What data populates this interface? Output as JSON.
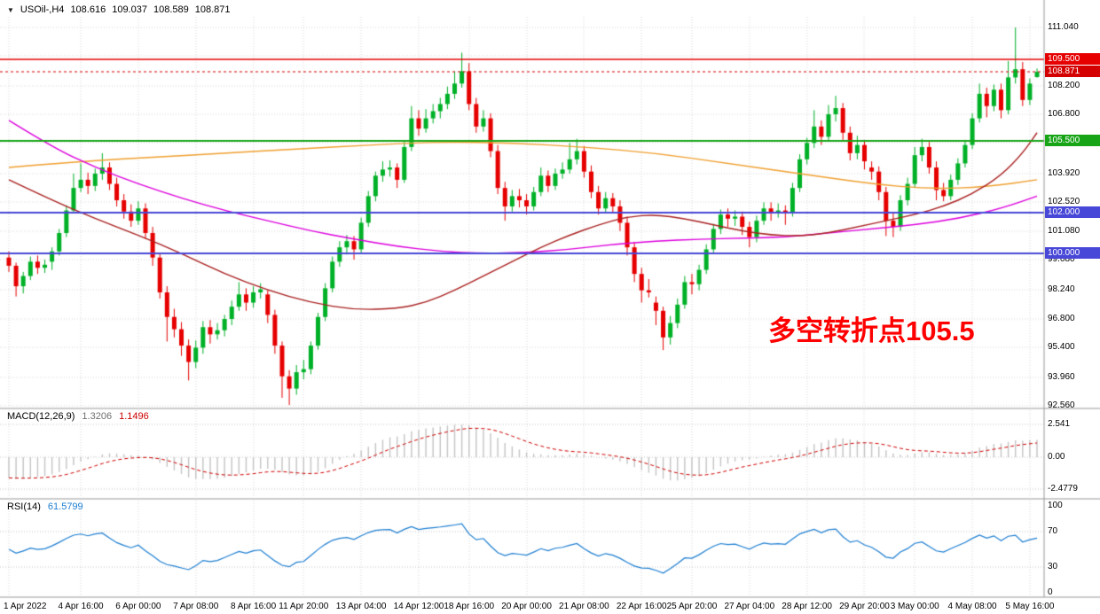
{
  "header": {
    "collapse_icon": "▼",
    "symbol_period": "USOil-,H4",
    "open": "108.616",
    "high": "109.037",
    "low": "108.589",
    "close": "108.871"
  },
  "annotation": {
    "text": "多空转折点105.5",
    "color": "#ff0000"
  },
  "indicators": {
    "macd": {
      "label": "MACD(12,26,9)",
      "value_main": "1.3206",
      "value_signal": "1.1496",
      "value_main_color": "#6f6f6f",
      "value_signal_color": "#cc0000",
      "scale": [
        "2.541",
        "0.00",
        "-2.4779"
      ]
    },
    "rsi": {
      "label": "RSI(14)",
      "value": "61.5799",
      "value_color": "#1e7fd2",
      "scale": [
        "100",
        "70",
        "30",
        "0"
      ]
    }
  },
  "chart_data": {
    "type": "candlestick",
    "title": "USOil- H4 chart with MACD(12,26,9) and RSI(14)",
    "symbol": "USOil-",
    "timeframe": "H4",
    "up_color": "#00b127",
    "down_color": "#e60000",
    "grid_on": true,
    "y_axis_range": [
      92.0,
      111.6
    ],
    "y_tick_labels": [
      "111.040",
      "108.200",
      "106.800",
      "103.920",
      "102.520",
      "101.080",
      "99.680",
      "98.240",
      "96.800",
      "95.400",
      "93.960",
      "92.560"
    ],
    "gridline_prices": [
      111.04,
      109.64,
      108.2,
      106.8,
      105.4,
      103.92,
      102.52,
      101.08,
      99.68,
      98.24,
      96.8,
      95.4,
      93.96,
      92.56
    ],
    "x_labels": [
      {
        "label": "1 Apr 2022",
        "i": 0
      },
      {
        "label": "4 Apr 16:00",
        "i": 10
      },
      {
        "label": "6 Apr 00:00",
        "i": 18
      },
      {
        "label": "7 Apr 08:00",
        "i": 26
      },
      {
        "label": "8 Apr 16:00",
        "i": 34
      },
      {
        "label": "11 Apr 20:00",
        "i": 41
      },
      {
        "label": "13 Apr 04:00",
        "i": 49
      },
      {
        "label": "14 Apr 12:00",
        "i": 57
      },
      {
        "label": "18 Apr 16:00",
        "i": 64
      },
      {
        "label": "20 Apr 00:00",
        "i": 72
      },
      {
        "label": "21 Apr 08:00",
        "i": 80
      },
      {
        "label": "22 Apr 16:00",
        "i": 88
      },
      {
        "label": "25 Apr 20:00",
        "i": 95
      },
      {
        "label": "27 Apr 04:00",
        "i": 103
      },
      {
        "label": "28 Apr 12:00",
        "i": 111
      },
      {
        "label": "29 Apr 20:00",
        "i": 119
      },
      {
        "label": "3 May 00:00",
        "i": 126
      },
      {
        "label": "4 May 08:00",
        "i": 134
      },
      {
        "label": "5 May 16:00",
        "i": 142
      }
    ],
    "horizontal_levels": [
      {
        "price": 109.5,
        "label": "109.500",
        "color": "#e60000",
        "lw": 1.5
      },
      {
        "price": 105.5,
        "label": "105.500",
        "color": "#17a517",
        "lw": 2
      },
      {
        "price": 102.0,
        "label": "102.000",
        "color": "#4747d8",
        "lw": 2
      },
      {
        "price": 100.0,
        "label": "100.000",
        "color": "#4747d8",
        "lw": 2
      }
    ],
    "current_price": {
      "value": 108.871,
      "label": "108.871",
      "color": "#d40000"
    },
    "candles": [
      [
        99.8,
        100.1,
        99.1,
        99.4
      ],
      [
        99.4,
        99.55,
        97.9,
        98.4
      ],
      [
        98.4,
        99.1,
        98.05,
        98.9
      ],
      [
        98.9,
        99.85,
        98.7,
        99.6
      ],
      [
        99.6,
        99.9,
        99.0,
        99.3
      ],
      [
        99.3,
        99.7,
        99.05,
        99.45
      ],
      [
        99.6,
        100.3,
        99.2,
        100.1
      ],
      [
        100.1,
        101.2,
        99.9,
        101.0
      ],
      [
        101.0,
        102.35,
        100.8,
        102.1
      ],
      [
        102.1,
        103.9,
        101.95,
        103.2
      ],
      [
        103.2,
        104.4,
        103.0,
        103.6
      ],
      [
        103.6,
        103.95,
        102.9,
        103.3
      ],
      [
        103.3,
        104.15,
        103.05,
        103.9
      ],
      [
        103.9,
        104.9,
        103.6,
        104.2
      ],
      [
        104.2,
        104.45,
        103.1,
        103.4
      ],
      [
        103.4,
        103.7,
        102.3,
        102.6
      ],
      [
        102.6,
        102.9,
        101.7,
        102.05
      ],
      [
        102.05,
        102.4,
        101.3,
        101.6
      ],
      [
        101.6,
        102.55,
        101.4,
        102.2
      ],
      [
        102.2,
        102.45,
        100.7,
        101.0
      ],
      [
        101.0,
        101.3,
        99.4,
        99.8
      ],
      [
        99.8,
        100.0,
        97.8,
        98.1
      ],
      [
        98.1,
        98.4,
        95.7,
        96.9
      ],
      [
        96.9,
        97.3,
        95.9,
        96.3
      ],
      [
        96.3,
        96.65,
        95.0,
        95.5
      ],
      [
        95.5,
        95.8,
        93.8,
        94.7
      ],
      [
        94.7,
        95.75,
        94.4,
        95.4
      ],
      [
        95.4,
        96.7,
        95.1,
        96.4
      ],
      [
        96.4,
        96.75,
        95.6,
        96.05
      ],
      [
        96.05,
        96.6,
        95.8,
        96.25
      ],
      [
        96.25,
        97.0,
        95.95,
        96.8
      ],
      [
        96.8,
        97.7,
        96.5,
        97.4
      ],
      [
        97.4,
        98.6,
        97.2,
        98.0
      ],
      [
        98.0,
        98.3,
        97.2,
        97.6
      ],
      [
        97.6,
        98.4,
        97.35,
        98.1
      ],
      [
        98.1,
        98.55,
        97.8,
        98.25
      ],
      [
        98.0,
        98.2,
        96.6,
        97.0
      ],
      [
        97.0,
        97.25,
        95.1,
        95.5
      ],
      [
        95.5,
        95.7,
        92.95,
        94.0
      ],
      [
        94.0,
        94.3,
        92.6,
        93.4
      ],
      [
        93.4,
        94.55,
        93.1,
        94.2
      ],
      [
        94.2,
        94.8,
        93.85,
        94.35
      ],
      [
        94.35,
        95.7,
        94.1,
        95.5
      ],
      [
        95.5,
        97.1,
        95.3,
        96.9
      ],
      [
        96.9,
        98.55,
        96.7,
        98.3
      ],
      [
        98.3,
        99.85,
        98.1,
        99.6
      ],
      [
        99.6,
        100.6,
        99.35,
        100.3
      ],
      [
        100.3,
        100.9,
        99.95,
        100.6
      ],
      [
        100.6,
        100.85,
        99.7,
        100.2
      ],
      [
        100.2,
        101.75,
        100.0,
        101.5
      ],
      [
        101.5,
        103.05,
        101.3,
        102.8
      ],
      [
        102.8,
        104.0,
        102.55,
        103.8
      ],
      [
        103.8,
        104.5,
        103.5,
        104.1
      ],
      [
        104.1,
        104.55,
        103.75,
        104.2
      ],
      [
        104.2,
        104.4,
        103.2,
        103.6
      ],
      [
        103.6,
        105.5,
        103.45,
        105.2
      ],
      [
        105.2,
        107.2,
        105.0,
        106.6
      ],
      [
        106.6,
        107.0,
        105.75,
        106.1
      ],
      [
        106.1,
        107.05,
        105.9,
        106.6
      ],
      [
        106.6,
        107.3,
        106.35,
        106.95
      ],
      [
        106.95,
        107.6,
        106.6,
        107.3
      ],
      [
        107.3,
        108.15,
        107.05,
        107.8
      ],
      [
        107.8,
        108.9,
        107.55,
        108.3
      ],
      [
        108.3,
        109.81,
        108.1,
        108.9
      ],
      [
        108.9,
        109.3,
        107.0,
        107.3
      ],
      [
        107.3,
        107.6,
        105.9,
        106.2
      ],
      [
        106.2,
        107.0,
        105.95,
        106.6
      ],
      [
        106.6,
        106.85,
        104.7,
        105.0
      ],
      [
        105.0,
        105.3,
        102.9,
        103.2
      ],
      [
        103.2,
        103.5,
        101.6,
        102.3
      ],
      [
        102.3,
        103.1,
        102.05,
        102.8
      ],
      [
        102.8,
        103.15,
        102.25,
        102.6
      ],
      [
        102.6,
        102.9,
        101.9,
        102.3
      ],
      [
        102.3,
        103.25,
        102.1,
        103.0
      ],
      [
        103.0,
        104.2,
        102.8,
        103.8
      ],
      [
        103.8,
        104.05,
        103.0,
        103.3
      ],
      [
        103.3,
        104.15,
        103.1,
        103.9
      ],
      [
        103.9,
        104.45,
        103.65,
        104.1
      ],
      [
        104.1,
        105.4,
        103.9,
        104.6
      ],
      [
        104.6,
        105.6,
        104.35,
        105.0
      ],
      [
        105.0,
        105.25,
        103.7,
        104.0
      ],
      [
        104.0,
        104.3,
        102.7,
        103.0
      ],
      [
        103.0,
        103.3,
        101.9,
        102.2
      ],
      [
        102.2,
        103.0,
        101.95,
        102.7
      ],
      [
        102.7,
        102.95,
        101.95,
        102.3
      ],
      [
        102.3,
        102.6,
        101.1,
        101.5
      ],
      [
        101.5,
        101.8,
        99.9,
        100.3
      ],
      [
        100.3,
        100.55,
        98.6,
        99.0
      ],
      [
        99.0,
        99.3,
        97.6,
        98.2
      ],
      [
        98.2,
        98.75,
        97.85,
        98.1
      ],
      [
        97.6,
        97.9,
        96.5,
        97.2
      ],
      [
        97.2,
        97.4,
        95.28,
        95.9
      ],
      [
        95.9,
        96.95,
        95.55,
        96.6
      ],
      [
        96.6,
        97.8,
        96.35,
        97.5
      ],
      [
        97.5,
        98.9,
        97.3,
        98.6
      ],
      [
        98.6,
        99.0,
        98.0,
        98.5
      ],
      [
        98.5,
        99.45,
        98.2,
        99.2
      ],
      [
        99.2,
        100.45,
        99.0,
        100.2
      ],
      [
        100.2,
        101.45,
        100.0,
        101.2
      ],
      [
        101.2,
        102.15,
        100.95,
        101.9
      ],
      [
        101.9,
        102.2,
        101.3,
        101.7
      ],
      [
        101.7,
        102.1,
        101.35,
        101.8
      ],
      [
        101.8,
        102.05,
        100.9,
        101.3
      ],
      [
        101.3,
        101.55,
        100.3,
        100.8
      ],
      [
        100.8,
        101.85,
        100.55,
        101.6
      ],
      [
        101.6,
        102.5,
        101.4,
        102.2
      ],
      [
        102.2,
        102.5,
        101.6,
        102.0
      ],
      [
        102.0,
        102.45,
        101.75,
        102.1
      ],
      [
        102.1,
        102.35,
        101.4,
        102.0
      ],
      [
        102.0,
        103.45,
        101.8,
        103.2
      ],
      [
        103.2,
        104.85,
        103.0,
        104.6
      ],
      [
        104.6,
        105.65,
        104.35,
        105.4
      ],
      [
        105.4,
        107.0,
        105.15,
        106.2
      ],
      [
        106.2,
        106.5,
        105.3,
        105.7
      ],
      [
        105.7,
        107.25,
        105.5,
        106.8
      ],
      [
        106.8,
        107.7,
        106.45,
        107.1
      ],
      [
        107.1,
        107.35,
        105.55,
        105.9
      ],
      [
        105.9,
        106.2,
        104.55,
        104.9
      ],
      [
        104.9,
        105.75,
        104.6,
        105.3
      ],
      [
        105.3,
        105.55,
        104.1,
        104.5
      ],
      [
        104.2,
        104.5,
        103.6,
        104.0
      ],
      [
        104.0,
        104.25,
        102.6,
        103.0
      ],
      [
        103.0,
        103.25,
        100.85,
        101.6
      ],
      [
        101.6,
        102.0,
        100.8,
        101.3
      ],
      [
        101.3,
        102.85,
        101.1,
        102.6
      ],
      [
        102.6,
        103.7,
        102.35,
        103.4
      ],
      [
        103.4,
        105.2,
        103.2,
        104.8
      ],
      [
        104.8,
        105.6,
        104.5,
        105.2
      ],
      [
        105.2,
        105.45,
        103.9,
        104.2
      ],
      [
        104.2,
        104.5,
        102.6,
        103.1
      ],
      [
        103.1,
        103.45,
        102.55,
        102.8
      ],
      [
        102.8,
        103.85,
        102.6,
        103.6
      ],
      [
        103.6,
        104.65,
        103.35,
        104.4
      ],
      [
        104.4,
        105.55,
        104.2,
        105.3
      ],
      [
        105.3,
        106.85,
        105.1,
        106.6
      ],
      [
        106.6,
        108.3,
        106.4,
        107.8
      ],
      [
        107.8,
        108.1,
        106.65,
        107.2
      ],
      [
        107.2,
        108.25,
        106.95,
        108.0
      ],
      [
        108.0,
        108.3,
        106.6,
        107.0
      ],
      [
        107.0,
        109.4,
        106.8,
        108.6
      ],
      [
        108.6,
        111.04,
        108.3,
        109.0
      ],
      [
        109.0,
        109.35,
        107.2,
        107.5
      ],
      [
        107.5,
        108.55,
        107.25,
        108.3
      ],
      [
        108.616,
        109.037,
        108.589,
        108.871
      ]
    ],
    "moving_averages": [
      {
        "name": "ma-slow-orange",
        "color": "#f0a030",
        "points": [
          [
            0,
            104.2
          ],
          [
            10,
            104.5
          ],
          [
            20,
            104.7
          ],
          [
            30,
            104.9
          ],
          [
            40,
            105.1
          ],
          [
            50,
            105.3
          ],
          [
            60,
            105.45
          ],
          [
            70,
            105.4
          ],
          [
            80,
            105.2
          ],
          [
            90,
            104.9
          ],
          [
            100,
            104.4
          ],
          [
            110,
            103.9
          ],
          [
            120,
            103.4
          ],
          [
            128,
            103.15
          ],
          [
            136,
            103.25
          ],
          [
            143,
            103.6
          ]
        ]
      },
      {
        "name": "ma-medium-magenta",
        "color": "#dd00dd",
        "points": [
          [
            0,
            106.5
          ],
          [
            6,
            105.2
          ],
          [
            12,
            104.2
          ],
          [
            18,
            103.4
          ],
          [
            24,
            102.7
          ],
          [
            30,
            102.1
          ],
          [
            36,
            101.6
          ],
          [
            42,
            101.1
          ],
          [
            48,
            100.7
          ],
          [
            54,
            100.35
          ],
          [
            60,
            100.1
          ],
          [
            66,
            100.0
          ],
          [
            72,
            100.05
          ],
          [
            78,
            100.2
          ],
          [
            84,
            100.45
          ],
          [
            90,
            100.6
          ],
          [
            96,
            100.7
          ],
          [
            102,
            100.75
          ],
          [
            108,
            100.8
          ],
          [
            114,
            101.0
          ],
          [
            120,
            101.2
          ],
          [
            126,
            101.4
          ],
          [
            132,
            101.7
          ],
          [
            138,
            102.2
          ],
          [
            143,
            102.8
          ]
        ]
      },
      {
        "name": "ma-fast-maroon",
        "color": "#aa2222",
        "points": [
          [
            0,
            103.6
          ],
          [
            6,
            102.6
          ],
          [
            12,
            101.7
          ],
          [
            18,
            100.9
          ],
          [
            24,
            100.0
          ],
          [
            30,
            99.0
          ],
          [
            36,
            98.2
          ],
          [
            42,
            97.6
          ],
          [
            48,
            97.25
          ],
          [
            54,
            97.3
          ],
          [
            58,
            97.6
          ],
          [
            62,
            98.2
          ],
          [
            66,
            98.9
          ],
          [
            70,
            99.6
          ],
          [
            74,
            100.3
          ],
          [
            78,
            100.9
          ],
          [
            82,
            101.4
          ],
          [
            86,
            101.8
          ],
          [
            90,
            101.9
          ],
          [
            94,
            101.7
          ],
          [
            98,
            101.4
          ],
          [
            102,
            101.1
          ],
          [
            106,
            100.9
          ],
          [
            110,
            100.85
          ],
          [
            114,
            101.0
          ],
          [
            118,
            101.3
          ],
          [
            122,
            101.6
          ],
          [
            126,
            101.9
          ],
          [
            130,
            102.3
          ],
          [
            134,
            102.9
          ],
          [
            138,
            103.8
          ],
          [
            141,
            104.9
          ],
          [
            143,
            105.9
          ]
        ]
      }
    ],
    "macd": {
      "fast": 12,
      "slow": 26,
      "signal": 9,
      "histogram_color": "#c4c4c4",
      "signal_color": "#d00000",
      "scale_max": 2.541,
      "scale_min": -2.4779,
      "current_main": 1.3206,
      "current_signal": 1.1496
    },
    "rsi": {
      "period": 14,
      "color": "#1e7fd2",
      "levels": [
        70,
        30
      ],
      "range": [
        0,
        100
      ],
      "current": 61.5799
    }
  }
}
